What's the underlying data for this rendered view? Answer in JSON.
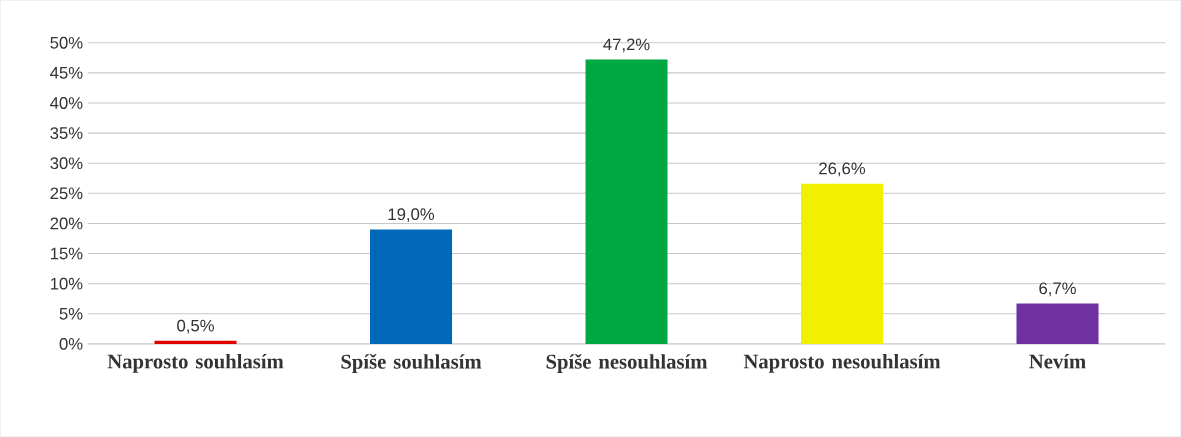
{
  "chart_data": {
    "type": "bar",
    "categories": [
      "Naprosto souhlasím",
      "Spíše souhlasím",
      "Spíše nesouhlasím",
      "Naprosto nesouhlasím",
      "Nevím"
    ],
    "values": [
      0.5,
      19.0,
      47.2,
      26.6,
      6.7
    ],
    "colors": [
      "#e00000",
      "#0068b8",
      "#00a844",
      "#f0f000",
      "#7030a0"
    ],
    "value_labels": [
      "0,5%",
      "19,0%",
      "47,2%",
      "26,6%",
      "6,7%"
    ],
    "ylim": [
      0,
      50
    ],
    "yticks": [
      {
        "value": 0,
        "label": "0%"
      },
      {
        "value": 5,
        "label": "5%"
      },
      {
        "value": 10,
        "label": "10%"
      },
      {
        "value": 15,
        "label": "15%"
      },
      {
        "value": 20,
        "label": "20%"
      },
      {
        "value": 25,
        "label": "25%"
      },
      {
        "value": 30,
        "label": "30%"
      },
      {
        "value": 35,
        "label": "35%"
      },
      {
        "value": 40,
        "label": "40%"
      },
      {
        "value": 45,
        "label": "45%"
      },
      {
        "value": 50,
        "label": "50%"
      }
    ],
    "grid": "y"
  }
}
